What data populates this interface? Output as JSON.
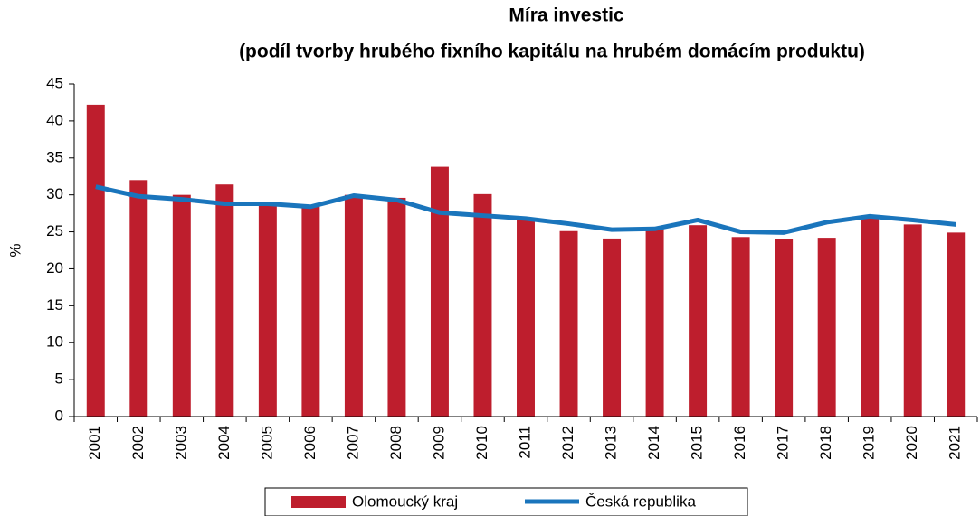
{
  "chart_data": {
    "type": "bar_line",
    "title": [
      "Míra investic",
      "(podíl tvorby hrubého fixního kapitálu na hrubém domácím produktu)"
    ],
    "y_label": "%",
    "categories": [
      "2001",
      "2002",
      "2003",
      "2004",
      "2005",
      "2006",
      "2007",
      "2008",
      "2009",
      "2010",
      "2011",
      "2012",
      "2013",
      "2014",
      "2015",
      "2016",
      "2017",
      "2018",
      "2019",
      "2020",
      "2021"
    ],
    "series": [
      {
        "name": "Olomoucký kraj",
        "kind": "bar",
        "color": "#be1e2d",
        "values": [
          42.2,
          32.0,
          30.0,
          31.4,
          29.0,
          28.5,
          30.0,
          29.6,
          33.8,
          30.1,
          26.8,
          25.1,
          24.1,
          25.5,
          25.9,
          24.3,
          24.0,
          24.2,
          26.8,
          26.0,
          24.9
        ]
      },
      {
        "name": "Česká republika",
        "kind": "line",
        "color": "#1a75bc",
        "values": [
          31.1,
          29.8,
          29.4,
          28.8,
          28.8,
          28.4,
          29.9,
          29.3,
          27.6,
          27.2,
          26.8,
          26.1,
          25.3,
          25.4,
          26.6,
          25.0,
          24.9,
          26.3,
          27.1,
          26.6,
          26.0
        ]
      }
    ],
    "ylim": [
      0,
      45
    ],
    "yticks": [
      0,
      5,
      10,
      15,
      20,
      25,
      30,
      35,
      40,
      45
    ],
    "grid": false,
    "legend": "bottom"
  }
}
